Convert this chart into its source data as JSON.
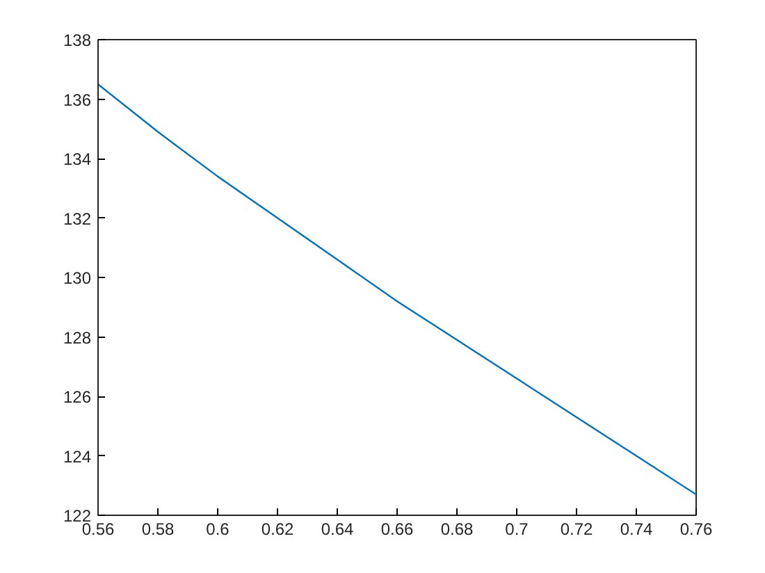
{
  "chart_data": {
    "type": "line",
    "x": [
      0.56,
      0.58,
      0.6,
      0.62,
      0.64,
      0.66,
      0.68,
      0.7,
      0.72,
      0.74,
      0.76
    ],
    "series": [
      {
        "color": "#0072bd",
        "values": [
          136.5,
          134.9,
          133.4,
          132.0,
          130.6,
          129.2,
          127.9,
          126.6,
          125.3,
          124.0,
          122.7
        ]
      }
    ],
    "xlim": [
      0.56,
      0.76
    ],
    "ylim": [
      122,
      138
    ],
    "xticks": [
      0.56,
      0.58,
      0.6,
      0.62,
      0.64,
      0.66,
      0.68,
      0.7,
      0.72,
      0.74,
      0.76
    ],
    "yticks": [
      122,
      124,
      126,
      128,
      130,
      132,
      134,
      136,
      138
    ],
    "grid": false,
    "marker": "none",
    "line_style": "solid"
  }
}
